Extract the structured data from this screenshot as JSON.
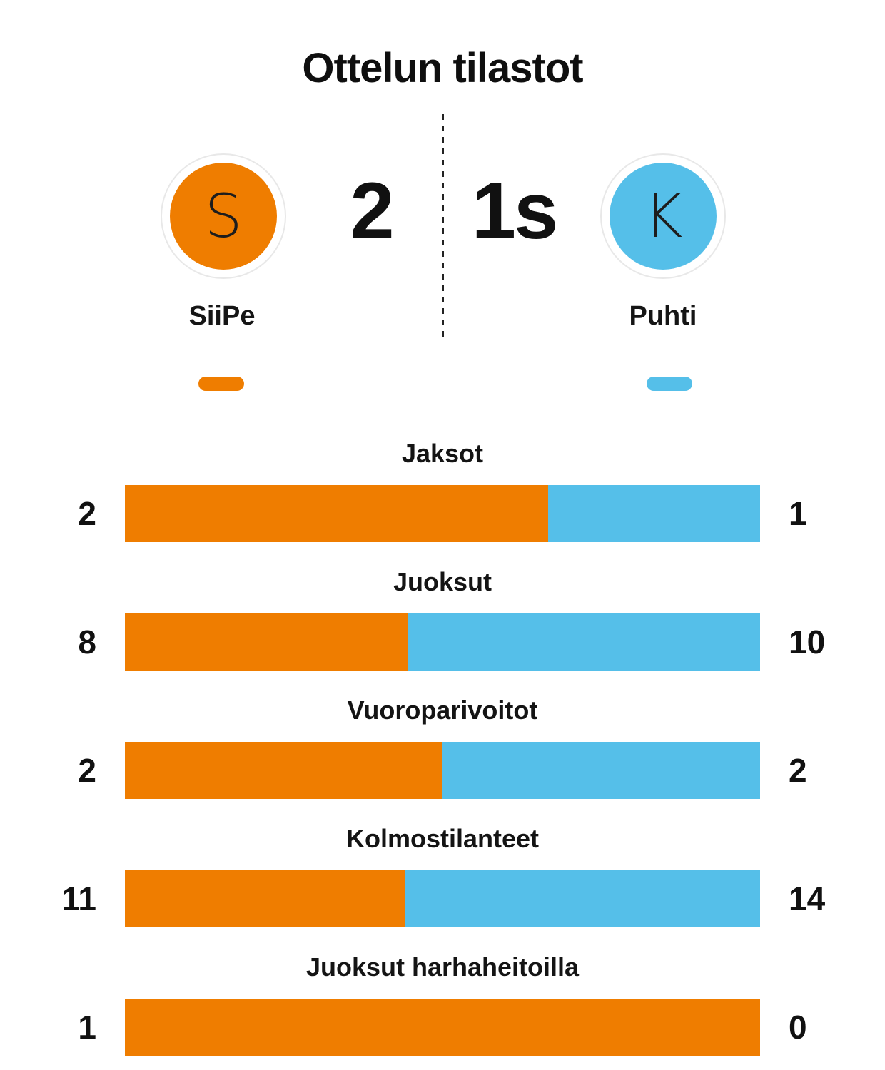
{
  "title": "Ottelun tilastot",
  "colors": {
    "home": "#ef7d00",
    "away": "#55bfe9",
    "text": "#111111",
    "badge_ring": "#e8e8e8"
  },
  "scoreboard": {
    "home": {
      "initial": "S",
      "name": "SiiPe",
      "score": "2"
    },
    "away": {
      "initial": "K",
      "name": "Puhti",
      "score": "1s"
    }
  },
  "chart_data": {
    "type": "bar",
    "orientation": "horizontal-stacked",
    "title": "Ottelun tilastot",
    "categories": [
      "Jaksot",
      "Juoksut",
      "Vuoroparivoitot",
      "Kolmostilanteet",
      "Juoksut harhaheitoilla"
    ],
    "series": [
      {
        "name": "SiiPe",
        "color": "#ef7d00",
        "values": [
          2,
          8,
          2,
          11,
          1
        ]
      },
      {
        "name": "Puhti",
        "color": "#55bfe9",
        "values": [
          1,
          10,
          2,
          14,
          0
        ]
      }
    ],
    "value_labels": "both-ends",
    "legend_position": "none"
  }
}
